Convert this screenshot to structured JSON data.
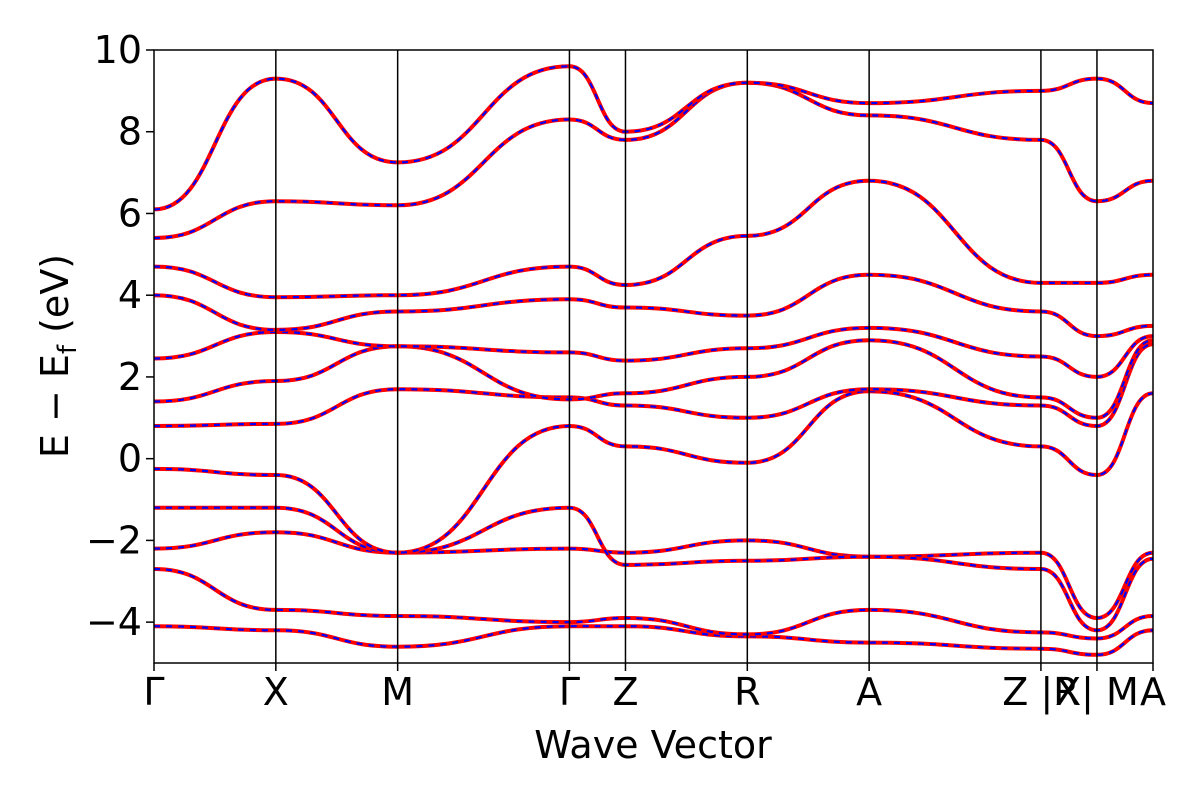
{
  "chart_data": {
    "type": "line",
    "title": "",
    "xlabel": "Wave Vector",
    "ylabel_main": "E − E",
    "ylabel_sub": "f",
    "ylabel_unit": " (eV)",
    "ylim": [
      -5,
      10
    ],
    "yticks": [
      -4,
      -2,
      0,
      2,
      4,
      6,
      8,
      10
    ],
    "ytick_labels": [
      "−4",
      "−2",
      "0",
      "2",
      "4",
      "6",
      "8",
      "10"
    ],
    "xlim": [
      0,
      8.2
    ],
    "grid": false,
    "legend": "none",
    "colors": {
      "line_solid": "#ff0000",
      "line_dashed": "#0000ff",
      "axis": "#000000"
    },
    "high_symmetry_points": [
      {
        "label": "Γ",
        "x": 0.0
      },
      {
        "label": "X",
        "x": 1.0
      },
      {
        "label": "M",
        "x": 2.0
      },
      {
        "label": "Γ",
        "x": 3.41
      },
      {
        "label": "Z",
        "x": 3.87
      },
      {
        "label": "R",
        "x": 4.87
      },
      {
        "label": "A",
        "x": 5.87
      },
      {
        "label": "Z |R",
        "x": 7.28
      },
      {
        "label": "X| M",
        "x": 7.74
      },
      {
        "label": "A",
        "x": 8.2
      }
    ],
    "bands": [
      {
        "name": "",
        "values": [
          -4.1,
          -4.2,
          -4.6,
          -4.1,
          -4.1,
          -4.35,
          -4.5,
          -4.65,
          -4.8,
          -4.2
        ]
      },
      {
        "name": "",
        "values": [
          -2.7,
          -3.7,
          -3.85,
          -4.0,
          -3.9,
          -4.3,
          -3.7,
          -4.25,
          -4.4,
          -3.85
        ]
      },
      {
        "name": "",
        "values": [
          -2.2,
          -1.8,
          -2.3,
          -2.2,
          -2.3,
          -2.0,
          -2.4,
          -2.3,
          -3.9,
          -2.3
        ]
      },
      {
        "name": "",
        "values": [
          -1.2,
          -1.2,
          -2.3,
          -1.2,
          -2.6,
          -2.5,
          -2.4,
          -2.7,
          -4.2,
          -2.45
        ]
      },
      {
        "name": "",
        "values": [
          -0.25,
          -0.4,
          -2.3,
          0.8,
          0.3,
          -0.1,
          1.65,
          0.3,
          -0.4,
          1.6
        ]
      },
      {
        "name": "",
        "values": [
          0.8,
          0.85,
          1.7,
          1.5,
          1.3,
          1.0,
          1.7,
          1.3,
          0.8,
          2.8
        ]
      },
      {
        "name": "",
        "values": [
          1.4,
          1.9,
          2.75,
          1.45,
          1.6,
          2.0,
          2.9,
          1.5,
          1.0,
          2.9
        ]
      },
      {
        "name": "",
        "values": [
          2.45,
          3.1,
          2.75,
          2.6,
          2.4,
          2.7,
          3.2,
          2.5,
          2.0,
          3.0
        ]
      },
      {
        "name": "",
        "values": [
          4.0,
          3.15,
          3.6,
          3.9,
          3.7,
          3.5,
          4.5,
          3.6,
          3.0,
          3.25
        ]
      },
      {
        "name": "",
        "values": [
          4.7,
          3.95,
          4.0,
          4.7,
          4.25,
          5.45,
          6.8,
          4.3,
          4.3,
          4.5
        ]
      },
      {
        "name": "",
        "values": [
          5.4,
          6.3,
          6.2,
          8.3,
          7.8,
          9.2,
          8.4,
          7.8,
          6.3,
          6.8
        ]
      },
      {
        "name": "",
        "values": [
          6.1,
          9.3,
          7.25,
          9.6,
          8.0,
          9.2,
          8.7,
          9.0,
          9.3,
          8.7
        ]
      }
    ]
  }
}
